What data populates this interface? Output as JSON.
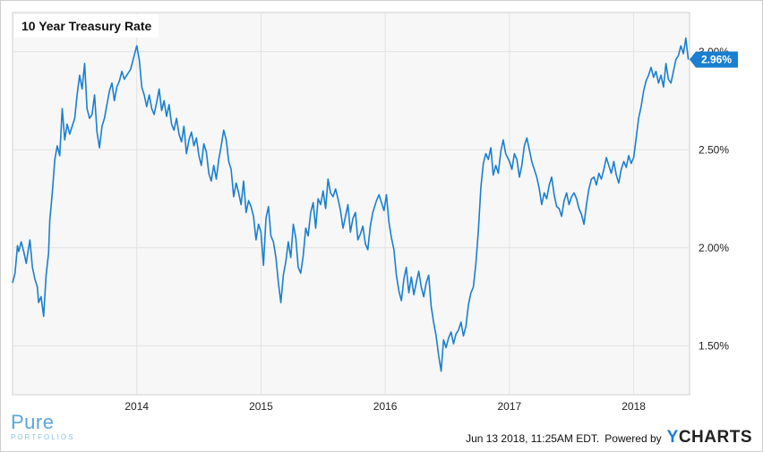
{
  "chart_data": {
    "type": "line",
    "title": "10 Year Treasury Rate",
    "xlabel": "",
    "ylabel": "",
    "x_ticks": [
      "2014",
      "2015",
      "2016",
      "2017",
      "2018"
    ],
    "y_ticks": [
      "1.50%",
      "2.00%",
      "2.50%",
      "3.00%"
    ],
    "ylim": [
      1.25,
      3.2
    ],
    "xlim": [
      2013.0,
      2018.45
    ],
    "grid": true,
    "series": [
      {
        "color": "#1a7fd0",
        "x": [
          2013.0,
          2013.02,
          2013.04,
          2013.05,
          2013.07,
          2013.09,
          2013.11,
          2013.12,
          2013.14,
          2013.16,
          2013.18,
          2013.2,
          2013.21,
          2013.23,
          2013.25,
          2013.27,
          2013.29,
          2013.3,
          2013.32,
          2013.34,
          2013.36,
          2013.38,
          2013.4,
          2013.42,
          2013.44,
          2013.46,
          2013.48,
          2013.5,
          2013.52,
          2013.54,
          2013.56,
          2013.58,
          2013.6,
          2013.62,
          2013.64,
          2013.66,
          2013.68,
          2013.7,
          2013.72,
          2013.74,
          2013.76,
          2013.78,
          2013.8,
          2013.82,
          2013.84,
          2013.86,
          2013.88,
          2013.9,
          2013.92,
          2013.95,
          2014.0,
          2014.02,
          2014.04,
          2014.06,
          2014.08,
          2014.1,
          2014.12,
          2014.14,
          2014.16,
          2014.18,
          2014.2,
          2014.22,
          2014.24,
          2014.26,
          2014.28,
          2014.3,
          2014.32,
          2014.34,
          2014.36,
          2014.38,
          2014.4,
          2014.42,
          2014.44,
          2014.46,
          2014.48,
          2014.5,
          2014.52,
          2014.54,
          2014.56,
          2014.58,
          2014.6,
          2014.62,
          2014.64,
          2014.66,
          2014.68,
          2014.7,
          2014.72,
          2014.74,
          2014.76,
          2014.78,
          2014.8,
          2014.82,
          2014.84,
          2014.86,
          2014.88,
          2014.9,
          2014.92,
          2014.94,
          2014.96,
          2014.98,
          2015.0,
          2015.02,
          2015.04,
          2015.06,
          2015.08,
          2015.1,
          2015.12,
          2015.14,
          2015.16,
          2015.18,
          2015.2,
          2015.22,
          2015.24,
          2015.26,
          2015.28,
          2015.3,
          2015.32,
          2015.34,
          2015.36,
          2015.38,
          2015.4,
          2015.42,
          2015.44,
          2015.46,
          2015.48,
          2015.5,
          2015.52,
          2015.54,
          2015.56,
          2015.58,
          2015.6,
          2015.62,
          2015.64,
          2015.66,
          2015.68,
          2015.7,
          2015.72,
          2015.74,
          2015.76,
          2015.78,
          2015.8,
          2015.82,
          2015.84,
          2015.86,
          2015.88,
          2015.9,
          2015.93,
          2015.95,
          2015.97,
          2015.99,
          2016.01,
          2016.03,
          2016.05,
          2016.07,
          2016.09,
          2016.11,
          2016.13,
          2016.15,
          2016.17,
          2016.19,
          2016.21,
          2016.23,
          2016.25,
          2016.27,
          2016.29,
          2016.31,
          2016.33,
          2016.35,
          2016.37,
          2016.39,
          2016.41,
          2016.43,
          2016.45,
          2016.47,
          2016.49,
          2016.51,
          2016.53,
          2016.55,
          2016.57,
          2016.59,
          2016.61,
          2016.63,
          2016.65,
          2016.67,
          2016.69,
          2016.71,
          2016.73,
          2016.75,
          2016.77,
          2016.79,
          2016.81,
          2016.83,
          2016.85,
          2016.87,
          2016.89,
          2016.91,
          2016.93,
          2016.95,
          2016.97,
          2017.0,
          2017.02,
          2017.04,
          2017.06,
          2017.08,
          2017.1,
          2017.12,
          2017.14,
          2017.16,
          2017.18,
          2017.2,
          2017.22,
          2017.24,
          2017.26,
          2017.28,
          2017.3,
          2017.32,
          2017.34,
          2017.36,
          2017.38,
          2017.4,
          2017.42,
          2017.44,
          2017.46,
          2017.48,
          2017.5,
          2017.52,
          2017.54,
          2017.56,
          2017.58,
          2017.6,
          2017.62,
          2017.64,
          2017.66,
          2017.68,
          2017.7,
          2017.72,
          2017.74,
          2017.76,
          2017.78,
          2017.8,
          2017.82,
          2017.84,
          2017.86,
          2017.88,
          2017.9,
          2017.92,
          2017.94,
          2017.96,
          2017.98,
          2018.0,
          2018.02,
          2018.04,
          2018.06,
          2018.08,
          2018.1,
          2018.12,
          2018.14,
          2018.16,
          2018.18,
          2018.2,
          2018.22,
          2018.24,
          2018.26,
          2018.28,
          2018.3,
          2018.32,
          2018.34,
          2018.36,
          2018.38,
          2018.4,
          2018.42,
          2018.44
        ],
        "y": [
          1.82,
          1.87,
          2.01,
          1.98,
          2.03,
          1.98,
          1.92,
          1.96,
          2.04,
          1.9,
          1.84,
          1.8,
          1.72,
          1.75,
          1.65,
          1.86,
          1.97,
          2.14,
          2.28,
          2.45,
          2.52,
          2.47,
          2.71,
          2.55,
          2.63,
          2.58,
          2.62,
          2.66,
          2.78,
          2.88,
          2.81,
          2.94,
          2.71,
          2.66,
          2.68,
          2.78,
          2.59,
          2.51,
          2.62,
          2.66,
          2.73,
          2.8,
          2.84,
          2.75,
          2.82,
          2.85,
          2.9,
          2.86,
          2.88,
          2.91,
          3.03,
          2.96,
          2.82,
          2.78,
          2.72,
          2.78,
          2.71,
          2.68,
          2.74,
          2.81,
          2.7,
          2.75,
          2.67,
          2.73,
          2.63,
          2.6,
          2.66,
          2.58,
          2.54,
          2.62,
          2.48,
          2.55,
          2.59,
          2.52,
          2.56,
          2.47,
          2.42,
          2.53,
          2.49,
          2.38,
          2.34,
          2.42,
          2.35,
          2.45,
          2.52,
          2.6,
          2.55,
          2.44,
          2.4,
          2.26,
          2.33,
          2.28,
          2.22,
          2.34,
          2.18,
          2.24,
          2.21,
          2.16,
          2.04,
          2.12,
          2.08,
          1.91,
          2.15,
          2.21,
          2.06,
          2.03,
          1.95,
          1.82,
          1.72,
          1.86,
          1.93,
          2.03,
          1.95,
          2.12,
          2.05,
          1.9,
          1.87,
          1.96,
          2.1,
          2.06,
          2.18,
          2.23,
          2.1,
          2.25,
          2.22,
          2.29,
          2.2,
          2.35,
          2.28,
          2.26,
          2.3,
          2.25,
          2.19,
          2.1,
          2.16,
          2.22,
          2.08,
          2.15,
          2.18,
          2.04,
          2.07,
          2.11,
          2.02,
          1.99,
          2.11,
          2.18,
          2.24,
          2.27,
          2.23,
          2.19,
          2.27,
          2.13,
          2.05,
          1.99,
          1.86,
          1.78,
          1.73,
          1.84,
          1.9,
          1.77,
          1.85,
          1.76,
          1.82,
          1.88,
          1.8,
          1.75,
          1.82,
          1.86,
          1.7,
          1.62,
          1.55,
          1.45,
          1.37,
          1.53,
          1.49,
          1.54,
          1.57,
          1.51,
          1.56,
          1.58,
          1.62,
          1.55,
          1.6,
          1.71,
          1.77,
          1.8,
          1.92,
          2.09,
          2.31,
          2.43,
          2.48,
          2.45,
          2.51,
          2.37,
          2.42,
          2.38,
          2.49,
          2.55,
          2.48,
          2.44,
          2.4,
          2.48,
          2.45,
          2.36,
          2.42,
          2.52,
          2.56,
          2.5,
          2.44,
          2.4,
          2.36,
          2.3,
          2.22,
          2.28,
          2.25,
          2.32,
          2.36,
          2.27,
          2.21,
          2.2,
          2.16,
          2.24,
          2.28,
          2.22,
          2.26,
          2.28,
          2.25,
          2.2,
          2.17,
          2.12,
          2.22,
          2.3,
          2.35,
          2.36,
          2.32,
          2.38,
          2.35,
          2.4,
          2.46,
          2.42,
          2.38,
          2.44,
          2.37,
          2.33,
          2.4,
          2.44,
          2.41,
          2.47,
          2.43,
          2.46,
          2.56,
          2.66,
          2.72,
          2.8,
          2.85,
          2.88,
          2.92,
          2.87,
          2.9,
          2.84,
          2.88,
          2.82,
          2.94,
          2.86,
          2.84,
          2.9,
          2.96,
          2.98,
          3.03,
          2.99,
          3.07,
          2.96
        ]
      }
    ],
    "last_value_label": "2.96%"
  },
  "footer": {
    "brand_main": "Pure",
    "brand_sub": "PORTFOLIOS",
    "timestamp": "Jun 13 2018, 11:25AM EDT.",
    "powered_by": "Powered by",
    "ycharts_y": "Y",
    "ycharts_rest": "CHARTS"
  },
  "colors": {
    "plot_bg": "#f7f7f7",
    "line": "#1a7fd0",
    "grid": "#e2e2e2",
    "label_bg": "#1a7fd0"
  }
}
